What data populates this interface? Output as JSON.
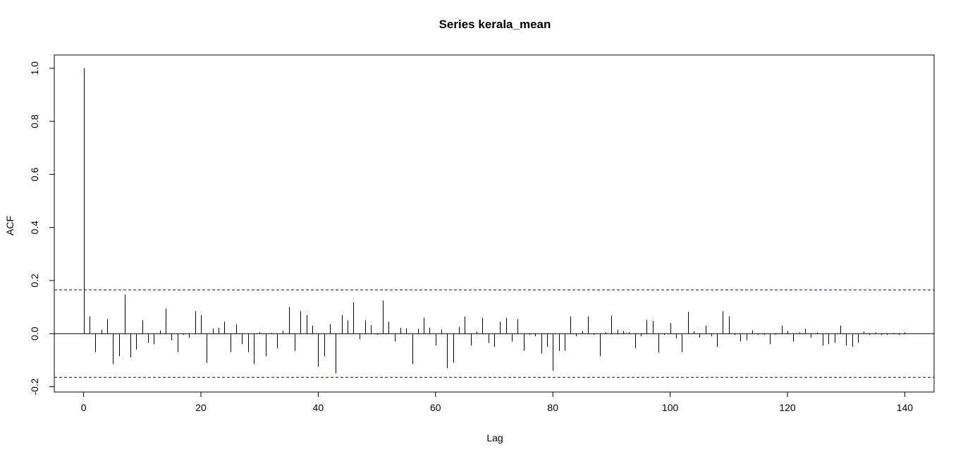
{
  "chart_data": {
    "type": "bar",
    "title": "Series  kerala_mean",
    "xlabel": "Lag",
    "ylabel": "ACF",
    "xlim": [
      -5,
      145
    ],
    "ylim": [
      -0.22,
      1.05
    ],
    "x_ticks": [
      0,
      20,
      40,
      60,
      80,
      100,
      120,
      140
    ],
    "x_tick_labels": [
      "0",
      "20",
      "40",
      "60",
      "80",
      "100",
      "120",
      "140"
    ],
    "y_ticks": [
      -0.2,
      0.0,
      0.2,
      0.4,
      0.6,
      0.8,
      1.0
    ],
    "y_tick_labels": [
      "-0.2",
      "0.0",
      "0.2",
      "0.4",
      "0.6",
      "0.8",
      "1.0"
    ],
    "conf_band": 0.165,
    "zero_line": 0,
    "colors": {
      "bars": "#000000",
      "conf_band": "#00008b",
      "frame": "#000000"
    },
    "lags": [
      0,
      1,
      2,
      3,
      4,
      5,
      6,
      7,
      8,
      9,
      10,
      11,
      12,
      13,
      14,
      15,
      16,
      17,
      18,
      19,
      20,
      21,
      22,
      23,
      24,
      25,
      26,
      27,
      28,
      29,
      30,
      31,
      32,
      33,
      34,
      35,
      36,
      37,
      38,
      39,
      40,
      41,
      42,
      43,
      44,
      45,
      46,
      47,
      48,
      49,
      50,
      51,
      52,
      53,
      54,
      55,
      56,
      57,
      58,
      59,
      60,
      61,
      62,
      63,
      64,
      65,
      66,
      67,
      68,
      69,
      70,
      71,
      72,
      73,
      74,
      75,
      76,
      77,
      78,
      79,
      80,
      81,
      82,
      83,
      84,
      85,
      86,
      87,
      88,
      89,
      90,
      91,
      92,
      93,
      94,
      95,
      96,
      97,
      98,
      99,
      100,
      101,
      102,
      103,
      104,
      105,
      106,
      107,
      108,
      109,
      110,
      111,
      112,
      113,
      114,
      115,
      116,
      117,
      118,
      119,
      120,
      121,
      122,
      123,
      124,
      125,
      126,
      127,
      128,
      129,
      130,
      131,
      132,
      133,
      134,
      135,
      136,
      137,
      138,
      139,
      140
    ],
    "values": [
      1.0,
      0.065,
      -0.07,
      0.015,
      0.055,
      -0.115,
      -0.085,
      0.148,
      -0.09,
      -0.06,
      0.05,
      -0.035,
      -0.04,
      0.012,
      0.095,
      -0.025,
      -0.07,
      -0.005,
      -0.015,
      0.085,
      0.07,
      -0.11,
      0.02,
      0.022,
      0.045,
      -0.07,
      0.035,
      -0.04,
      -0.07,
      -0.115,
      0.005,
      -0.085,
      0.003,
      -0.055,
      0.01,
      0.1,
      -0.065,
      0.085,
      0.07,
      0.03,
      -0.125,
      -0.085,
      0.035,
      -0.15,
      0.07,
      0.05,
      0.118,
      -0.02,
      0.05,
      0.032,
      -0.005,
      0.125,
      0.045,
      -0.03,
      0.022,
      0.02,
      -0.115,
      0.018,
      0.06,
      0.022,
      -0.045,
      0.015,
      -0.13,
      -0.11,
      0.025,
      0.065,
      -0.045,
      0.007,
      0.06,
      -0.035,
      -0.05,
      0.045,
      0.06,
      -0.03,
      0.055,
      -0.065,
      -0.005,
      -0.01,
      -0.075,
      -0.05,
      -0.14,
      -0.065,
      -0.065,
      0.065,
      -0.01,
      0.01,
      0.065,
      -0.005,
      -0.085,
      0.005,
      0.068,
      0.015,
      0.01,
      0.005,
      -0.055,
      -0.01,
      0.052,
      0.048,
      -0.072,
      -0.005,
      0.04,
      -0.018,
      -0.07,
      0.082,
      0.008,
      -0.015,
      0.03,
      -0.01,
      -0.05,
      0.085,
      0.065,
      -0.005,
      -0.03,
      -0.025,
      0.012,
      -0.005,
      -0.005,
      -0.04,
      -0.005,
      0.03,
      0.01,
      -0.03,
      0.005,
      0.018,
      -0.015,
      0.005,
      -0.045,
      -0.04,
      -0.035,
      0.03,
      -0.045,
      -0.05,
      -0.035,
      0.008,
      -0.005,
      0.005,
      -0.005,
      -0.005,
      0.003,
      -0.005,
      0.005
    ]
  }
}
